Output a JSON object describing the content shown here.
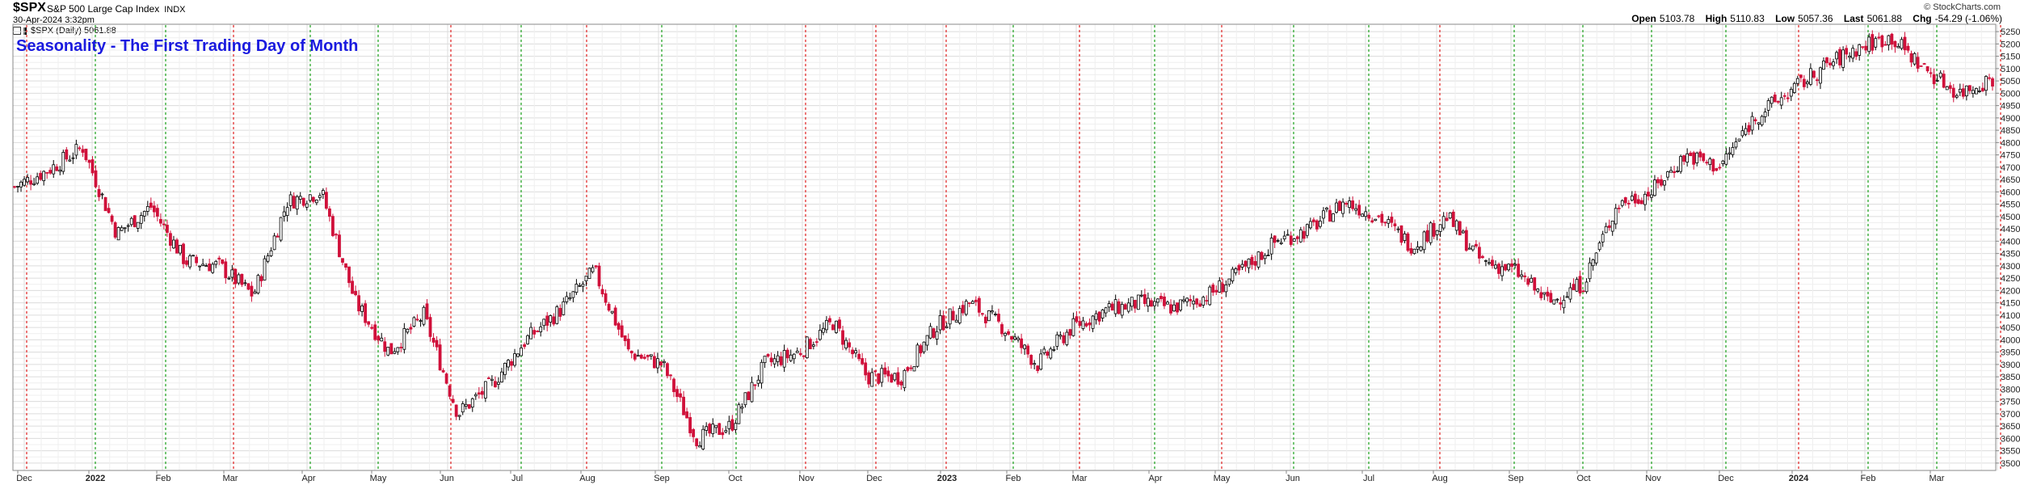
{
  "header": {
    "symbol": "$SPX",
    "description": "S&P 500 Large Cap Index",
    "exchange": "INDX",
    "date": "30-Apr-2024 3:32pm",
    "credit": "© StockCharts.com",
    "ohlc": {
      "open_label": "Open",
      "open": "5103.78",
      "high_label": "High",
      "high": "5110.83",
      "low_label": "Low",
      "low": "5057.36",
      "last_label": "Last",
      "last": "5061.88",
      "chg_label": "Chg",
      "chg": "-54.29 (-1.06%)"
    },
    "legend": "$SPX (Daily) 5061.88"
  },
  "chart_data": {
    "type": "candlestick",
    "title": "Seasonality - The First Trading Day of Month",
    "ylim": [
      3480,
      5270
    ],
    "ytick_step": 50,
    "y_axis_side": "right",
    "grid": true,
    "colors": {
      "up": "#000000",
      "down": "#d0103a",
      "first_day_line_red": "#e02020",
      "first_day_line_green": "#19a019",
      "title": "#1a1adf"
    },
    "x_labels": [
      {
        "label": "Dec",
        "bold": false
      },
      {
        "label": "2022",
        "bold": true
      },
      {
        "label": "Feb",
        "bold": false
      },
      {
        "label": "Mar",
        "bold": false
      },
      {
        "label": "Apr",
        "bold": false
      },
      {
        "label": "May",
        "bold": false
      },
      {
        "label": "Jun",
        "bold": false
      },
      {
        "label": "Jul",
        "bold": false
      },
      {
        "label": "Aug",
        "bold": false
      },
      {
        "label": "Sep",
        "bold": false
      },
      {
        "label": "Oct",
        "bold": false
      },
      {
        "label": "Nov",
        "bold": false
      },
      {
        "label": "Dec",
        "bold": false
      },
      {
        "label": "2023",
        "bold": true
      },
      {
        "label": "Feb",
        "bold": false
      },
      {
        "label": "Mar",
        "bold": false
      },
      {
        "label": "Apr",
        "bold": false
      },
      {
        "label": "May",
        "bold": false
      },
      {
        "label": "Jun",
        "bold": false
      },
      {
        "label": "Jul",
        "bold": false
      },
      {
        "label": "Aug",
        "bold": false
      },
      {
        "label": "Sep",
        "bold": false
      },
      {
        "label": "Oct",
        "bold": false
      },
      {
        "label": "Nov",
        "bold": false
      },
      {
        "label": "Dec",
        "bold": false
      },
      {
        "label": "2024",
        "bold": true
      },
      {
        "label": "Feb",
        "bold": false
      },
      {
        "label": "Mar",
        "bold": false
      },
      {
        "label": "Apr",
        "bold": false
      }
    ],
    "first_trading_day_lines": [
      {
        "month": "Dec 2021",
        "color": "red"
      },
      {
        "month": "Jan 2022",
        "color": "green"
      },
      {
        "month": "Feb 2022",
        "color": "green"
      },
      {
        "month": "Mar 2022",
        "color": "red"
      },
      {
        "month": "Apr 2022",
        "color": "green"
      },
      {
        "month": "May 2022",
        "color": "green"
      },
      {
        "month": "Jun 2022",
        "color": "red"
      },
      {
        "month": "Jul 2022",
        "color": "green"
      },
      {
        "month": "Aug 2022",
        "color": "red"
      },
      {
        "month": "Sep 2022",
        "color": "green"
      },
      {
        "month": "Oct 2022",
        "color": "green"
      },
      {
        "month": "Nov 2022",
        "color": "red"
      },
      {
        "month": "Dec 2022",
        "color": "red"
      },
      {
        "month": "Jan 2023",
        "color": "red"
      },
      {
        "month": "Feb 2023",
        "color": "green"
      },
      {
        "month": "Mar 2023",
        "color": "red"
      },
      {
        "month": "Apr 2023",
        "color": "green"
      },
      {
        "month": "May 2023",
        "color": "red"
      },
      {
        "month": "Jun 2023",
        "color": "green"
      },
      {
        "month": "Jul 2023",
        "color": "green"
      },
      {
        "month": "Aug 2023",
        "color": "red"
      },
      {
        "month": "Sep 2023",
        "color": "green"
      },
      {
        "month": "Oct 2023",
        "color": "green"
      },
      {
        "month": "Nov 2023",
        "color": "green"
      },
      {
        "month": "Dec 2023",
        "color": "green"
      },
      {
        "month": "Jan 2024",
        "color": "red"
      },
      {
        "month": "Feb 2024",
        "color": "green"
      },
      {
        "month": "Mar 2024",
        "color": "green"
      },
      {
        "month": "Apr 2024",
        "color": "red"
      }
    ],
    "month_close_path": [
      [
        "Nov 2021",
        4620
      ],
      [
        "Dec 2021",
        4690
      ],
      [
        "Jan 2022",
        4780
      ],
      [
        "Jan 2022",
        4430
      ],
      [
        "Feb 2022",
        4540
      ],
      [
        "Feb 2022",
        4320
      ],
      [
        "Mar 2022",
        4300
      ],
      [
        "Mar 2022",
        4180
      ],
      [
        "Apr 2022",
        4560
      ],
      [
        "Apr 2022",
        4600
      ],
      [
        "May 2022",
        4150
      ],
      [
        "May 2022",
        3950
      ],
      [
        "Jun 2022",
        4100
      ],
      [
        "Jun 2022",
        3700
      ],
      [
        "Jul 2022",
        3820
      ],
      [
        "Jul 2022",
        4000
      ],
      [
        "Aug 2022",
        4120
      ],
      [
        "Aug 2022",
        4280
      ],
      [
        "Sep 2022",
        3950
      ],
      [
        "Sep 2022",
        3900
      ],
      [
        "Oct 2022",
        3600
      ],
      [
        "Oct 2022",
        3650
      ],
      [
        "Nov 2022",
        3900
      ],
      [
        "Nov 2022",
        3950
      ],
      [
        "Dec 2022",
        4070
      ],
      [
        "Dec 2022",
        3850
      ],
      [
        "Jan 2023",
        3850
      ],
      [
        "Jan 2023",
        4050
      ],
      [
        "Feb 2023",
        4150
      ],
      [
        "Feb 2023",
        4050
      ],
      [
        "Mar 2023",
        3900
      ],
      [
        "Mar 2023",
        4050
      ],
      [
        "Apr 2023",
        4120
      ],
      [
        "Apr 2023",
        4150
      ],
      [
        "May 2023",
        4130
      ],
      [
        "May 2023",
        4180
      ],
      [
        "Jun 2023",
        4280
      ],
      [
        "Jun 2023",
        4400
      ],
      [
        "Jul 2023",
        4450
      ],
      [
        "Jul 2023",
        4560
      ],
      [
        "Aug 2023",
        4500
      ],
      [
        "Aug 2023",
        4380
      ],
      [
        "Sep 2023",
        4500
      ],
      [
        "Sep 2023",
        4320
      ],
      [
        "Oct 2023",
        4280
      ],
      [
        "Oct 2023",
        4150
      ],
      [
        "Nov 2023",
        4230
      ],
      [
        "Nov 2023",
        4550
      ],
      [
        "Dec 2023",
        4600
      ],
      [
        "Dec 2023",
        4750
      ],
      [
        "Jan 2024",
        4700
      ],
      [
        "Jan 2024",
        4900
      ],
      [
        "Feb 2024",
        5000
      ],
      [
        "Feb 2024",
        5100
      ],
      [
        "Mar 2024",
        5180
      ],
      [
        "Mar 2024",
        5230
      ],
      [
        "Apr 2024",
        5100
      ],
      [
        "Apr 2024",
        5000
      ],
      [
        "Apr 2024",
        5062
      ]
    ]
  }
}
